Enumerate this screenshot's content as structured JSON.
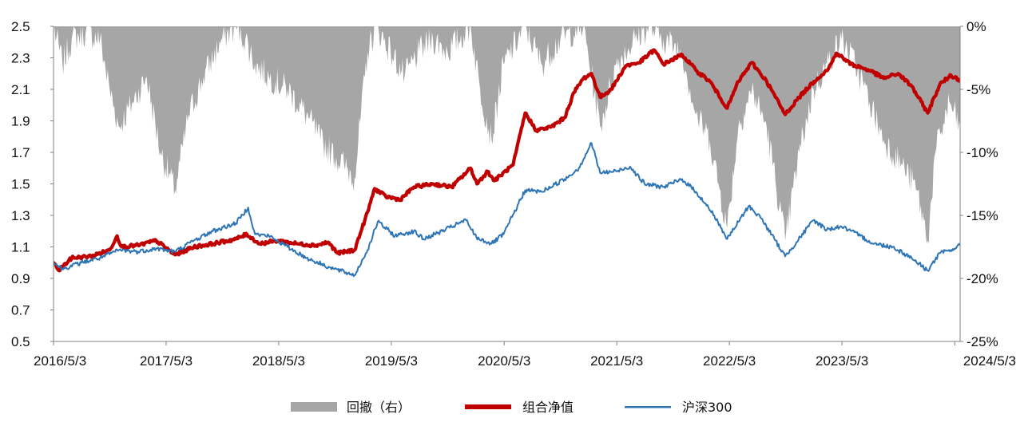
{
  "chart_data": {
    "type": "line",
    "title": "",
    "xlabel": "",
    "ylabel": "",
    "x_ticks": [
      "2016/5/3",
      "2017/5/3",
      "2018/5/3",
      "2019/5/3",
      "2020/5/3",
      "2021/5/3",
      "2022/5/3",
      "2023/5/3",
      "2024/5/3"
    ],
    "y_left": {
      "ylim": [
        0.5,
        2.5
      ],
      "ticks": [
        "2.5",
        "2.3",
        "2.1",
        "1.9",
        "1.7",
        "1.5",
        "1.3",
        "1.1",
        "0.9",
        "0.7",
        "0.5"
      ]
    },
    "y_right": {
      "ylim": [
        -25,
        0
      ],
      "ticks": [
        "0%",
        "-5%",
        "-10%",
        "-15%",
        "-20%",
        "-25%"
      ]
    },
    "legend_position": "bottom-center",
    "series": [
      {
        "name": "回撤（右）",
        "kind": "area",
        "axis": "right",
        "color": "#a6a6a6",
        "points": [
          [
            "2016-05-03",
            0
          ],
          [
            "2016-06-01",
            -3
          ],
          [
            "2016-07-01",
            -1
          ],
          [
            "2016-08-15",
            -0.5
          ],
          [
            "2016-10-01",
            -1
          ],
          [
            "2016-11-01",
            -5
          ],
          [
            "2016-12-01",
            -8
          ],
          [
            "2017-01-15",
            -6
          ],
          [
            "2017-03-01",
            -4
          ],
          [
            "2017-04-15",
            -10
          ],
          [
            "2017-06-01",
            -13
          ],
          [
            "2017-07-15",
            -7
          ],
          [
            "2017-09-01",
            -4
          ],
          [
            "2017-11-01",
            -1
          ],
          [
            "2017-12-15",
            0
          ],
          [
            "2018-01-15",
            -1
          ],
          [
            "2018-02-15",
            -3
          ],
          [
            "2018-04-01",
            -4
          ],
          [
            "2018-06-01",
            -5
          ],
          [
            "2018-08-01",
            -7
          ],
          [
            "2018-09-15",
            -9
          ],
          [
            "2018-10-20",
            -10
          ],
          [
            "2018-12-01",
            -11
          ],
          [
            "2019-01-04",
            -12
          ],
          [
            "2019-02-15",
            -2
          ],
          [
            "2019-03-15",
            0
          ],
          [
            "2019-05-01",
            -2
          ],
          [
            "2019-06-15",
            -4
          ],
          [
            "2019-08-01",
            -2
          ],
          [
            "2019-09-15",
            -1
          ],
          [
            "2019-11-01",
            -2
          ],
          [
            "2020-01-15",
            0
          ],
          [
            "2020-02-15",
            -5
          ],
          [
            "2020-03-23",
            -9
          ],
          [
            "2020-05-01",
            -3
          ],
          [
            "2020-07-10",
            0
          ],
          [
            "2020-09-01",
            -3
          ],
          [
            "2020-11-01",
            -1
          ],
          [
            "2021-01-15",
            0
          ],
          [
            "2021-03-10",
            -8
          ],
          [
            "2021-05-01",
            -3
          ],
          [
            "2021-07-01",
            -1
          ],
          [
            "2021-08-15",
            0
          ],
          [
            "2021-10-01",
            -1
          ],
          [
            "2021-12-01",
            -2
          ],
          [
            "2022-01-15",
            -7
          ],
          [
            "2022-03-01",
            -9
          ],
          [
            "2022-04-26",
            -16
          ],
          [
            "2022-06-01",
            -8
          ],
          [
            "2022-07-15",
            -5
          ],
          [
            "2022-09-01",
            -8
          ],
          [
            "2022-10-31",
            -17
          ],
          [
            "2022-12-15",
            -10
          ],
          [
            "2023-01-31",
            -5
          ],
          [
            "2023-03-15",
            -3
          ],
          [
            "2023-05-01",
            -1
          ],
          [
            "2023-06-15",
            -3
          ],
          [
            "2023-08-01",
            -6
          ],
          [
            "2023-09-15",
            -9
          ],
          [
            "2023-11-15",
            -11
          ],
          [
            "2024-01-01",
            -13
          ],
          [
            "2024-02-05",
            -17
          ],
          [
            "2024-03-01",
            -10
          ],
          [
            "2024-04-15",
            -6
          ],
          [
            "2024-05-20",
            -8
          ]
        ]
      },
      {
        "name": "组合净值",
        "kind": "line",
        "axis": "left",
        "color": "#c00000",
        "points": [
          [
            "2016-05-03",
            1.0
          ],
          [
            "2016-05-20",
            0.95
          ],
          [
            "2016-07-01",
            1.03
          ],
          [
            "2016-09-01",
            1.04
          ],
          [
            "2016-11-01",
            1.08
          ],
          [
            "2016-11-25",
            1.17
          ],
          [
            "2016-12-10",
            1.1
          ],
          [
            "2017-02-01",
            1.11
          ],
          [
            "2017-04-01",
            1.14
          ],
          [
            "2017-06-01",
            1.05
          ],
          [
            "2017-08-01",
            1.1
          ],
          [
            "2017-10-01",
            1.12
          ],
          [
            "2017-12-15",
            1.15
          ],
          [
            "2018-01-20",
            1.18
          ],
          [
            "2018-03-01",
            1.12
          ],
          [
            "2018-05-01",
            1.14
          ],
          [
            "2018-07-01",
            1.12
          ],
          [
            "2018-09-01",
            1.11
          ],
          [
            "2018-10-10",
            1.13
          ],
          [
            "2018-11-10",
            1.06
          ],
          [
            "2019-01-04",
            1.08
          ],
          [
            "2019-02-15",
            1.32
          ],
          [
            "2019-03-10",
            1.47
          ],
          [
            "2019-04-15",
            1.42
          ],
          [
            "2019-06-01",
            1.4
          ],
          [
            "2019-07-15",
            1.48
          ],
          [
            "2019-09-15",
            1.5
          ],
          [
            "2019-11-15",
            1.48
          ],
          [
            "2020-01-15",
            1.6
          ],
          [
            "2020-02-05",
            1.5
          ],
          [
            "2020-03-10",
            1.58
          ],
          [
            "2020-04-01",
            1.52
          ],
          [
            "2020-06-01",
            1.62
          ],
          [
            "2020-07-10",
            1.95
          ],
          [
            "2020-08-15",
            1.84
          ],
          [
            "2020-10-01",
            1.86
          ],
          [
            "2020-11-15",
            1.92
          ],
          [
            "2020-12-15",
            2.08
          ],
          [
            "2021-01-15",
            2.17
          ],
          [
            "2021-02-10",
            2.2
          ],
          [
            "2021-03-10",
            2.05
          ],
          [
            "2021-04-15",
            2.1
          ],
          [
            "2021-06-01",
            2.25
          ],
          [
            "2021-07-15",
            2.27
          ],
          [
            "2021-09-01",
            2.35
          ],
          [
            "2021-10-01",
            2.26
          ],
          [
            "2021-12-01",
            2.32
          ],
          [
            "2022-01-15",
            2.22
          ],
          [
            "2022-03-01",
            2.15
          ],
          [
            "2022-04-26",
            1.98
          ],
          [
            "2022-06-01",
            2.15
          ],
          [
            "2022-07-15",
            2.27
          ],
          [
            "2022-09-01",
            2.15
          ],
          [
            "2022-10-31",
            1.94
          ],
          [
            "2022-12-15",
            2.05
          ],
          [
            "2023-02-01",
            2.15
          ],
          [
            "2023-03-20",
            2.23
          ],
          [
            "2023-04-15",
            2.33
          ],
          [
            "2023-06-01",
            2.26
          ],
          [
            "2023-08-01",
            2.22
          ],
          [
            "2023-09-15",
            2.17
          ],
          [
            "2023-11-01",
            2.2
          ],
          [
            "2023-12-15",
            2.12
          ],
          [
            "2024-02-05",
            1.95
          ],
          [
            "2024-03-15",
            2.13
          ],
          [
            "2024-04-20",
            2.19
          ],
          [
            "2024-05-20",
            2.16
          ]
        ]
      },
      {
        "name": "沪深300",
        "kind": "line",
        "axis": "left",
        "color": "#2e75b6",
        "points": [
          [
            "2016-05-03",
            1.0
          ],
          [
            "2016-06-01",
            0.96
          ],
          [
            "2016-08-01",
            1.0
          ],
          [
            "2016-10-01",
            1.03
          ],
          [
            "2016-12-01",
            1.08
          ],
          [
            "2017-02-01",
            1.07
          ],
          [
            "2017-04-01",
            1.09
          ],
          [
            "2017-06-01",
            1.07
          ],
          [
            "2017-08-01",
            1.14
          ],
          [
            "2017-10-01",
            1.2
          ],
          [
            "2017-12-15",
            1.25
          ],
          [
            "2018-01-24",
            1.35
          ],
          [
            "2018-02-15",
            1.18
          ],
          [
            "2018-04-01",
            1.17
          ],
          [
            "2018-06-01",
            1.1
          ],
          [
            "2018-08-01",
            1.03
          ],
          [
            "2018-10-15",
            0.97
          ],
          [
            "2019-01-04",
            0.92
          ],
          [
            "2019-02-15",
            1.08
          ],
          [
            "2019-03-20",
            1.26
          ],
          [
            "2019-05-15",
            1.17
          ],
          [
            "2019-07-15",
            1.2
          ],
          [
            "2019-08-15",
            1.15
          ],
          [
            "2019-10-15",
            1.2
          ],
          [
            "2019-12-31",
            1.27
          ],
          [
            "2020-02-03",
            1.16
          ],
          [
            "2020-03-23",
            1.12
          ],
          [
            "2020-05-01",
            1.18
          ],
          [
            "2020-07-10",
            1.46
          ],
          [
            "2020-09-01",
            1.45
          ],
          [
            "2020-11-15",
            1.53
          ],
          [
            "2020-12-31",
            1.6
          ],
          [
            "2021-02-10",
            1.76
          ],
          [
            "2021-03-10",
            1.57
          ],
          [
            "2021-05-01",
            1.58
          ],
          [
            "2021-06-15",
            1.61
          ],
          [
            "2021-08-01",
            1.5
          ],
          [
            "2021-10-01",
            1.48
          ],
          [
            "2021-12-01",
            1.53
          ],
          [
            "2022-01-15",
            1.45
          ],
          [
            "2022-03-15",
            1.3
          ],
          [
            "2022-04-26",
            1.15
          ],
          [
            "2022-07-05",
            1.36
          ],
          [
            "2022-08-15",
            1.28
          ],
          [
            "2022-10-31",
            1.04
          ],
          [
            "2023-01-31",
            1.27
          ],
          [
            "2023-03-15",
            1.21
          ],
          [
            "2023-05-01",
            1.23
          ],
          [
            "2023-07-01",
            1.17
          ],
          [
            "2023-08-15",
            1.12
          ],
          [
            "2023-10-15",
            1.1
          ],
          [
            "2023-12-15",
            1.03
          ],
          [
            "2024-02-05",
            0.95
          ],
          [
            "2024-03-15",
            1.06
          ],
          [
            "2024-04-20",
            1.08
          ],
          [
            "2024-05-20",
            1.11
          ]
        ]
      }
    ]
  }
}
